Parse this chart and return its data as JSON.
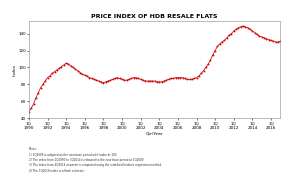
{
  "title": "PRICE INDEX OF HDB RESALE FLATS",
  "xlabel": "Qtr/Year",
  "ylabel": "Index",
  "ylim": [
    40,
    155
  ],
  "yticks": [
    40,
    60,
    80,
    100,
    120,
    140
  ],
  "line_color": "#cc0000",
  "marker_color": "#cc0000",
  "background_color": "#ffffff",
  "plot_bg_color": "#ffffff",
  "title_fontsize": 4.5,
  "label_fontsize": 3.2,
  "tick_fontsize": 3.0,
  "notes": [
    "Notes:",
    "1) 1Q2009 is adopted as the new base period with index at 100.",
    "2) The index from 1Q1990 to 3Q2014 is rebased to the new base period at 1Q2009.",
    "3) The index from 4Q2014 onwards is computed using the stratified hedonic regression method.",
    "4) The 1Q2016 index is a flash estimate."
  ],
  "y_values": [
    48,
    52,
    57,
    64,
    70,
    76,
    80,
    84,
    88,
    90,
    93,
    95,
    97,
    99,
    101,
    103,
    105,
    104,
    102,
    100,
    98,
    96,
    94,
    92,
    91,
    90,
    88,
    87,
    86,
    85,
    84,
    83,
    82,
    83,
    84,
    85,
    86,
    87,
    88,
    87,
    86,
    85,
    85,
    86,
    87,
    88,
    88,
    87,
    86,
    85,
    84,
    84,
    84,
    84,
    84,
    83,
    83,
    83,
    84,
    85,
    86,
    87,
    87,
    88,
    88,
    88,
    88,
    87,
    86,
    86,
    86,
    87,
    88,
    90,
    93,
    96,
    100,
    104,
    109,
    115,
    120,
    125,
    128,
    130,
    132,
    135,
    138,
    140,
    143,
    145,
    147,
    148,
    149,
    148,
    147,
    145,
    143,
    141,
    139,
    137,
    136,
    135,
    134,
    133,
    132,
    131,
    130,
    130,
    131
  ],
  "x_tick_years": [
    "1990",
    "1992",
    "1994",
    "1996",
    "1998",
    "2000",
    "2002",
    "2004",
    "2006",
    "2008",
    "2010",
    "2012",
    "2014",
    "2016"
  ],
  "x_tick_quarters": [
    "1Q",
    "1Q",
    "1Q",
    "1Q",
    "1Q",
    "1Q",
    "1Q",
    "1Q",
    "1Q",
    "1Q",
    "1Q",
    "1Q",
    "1Q",
    "1Q"
  ]
}
